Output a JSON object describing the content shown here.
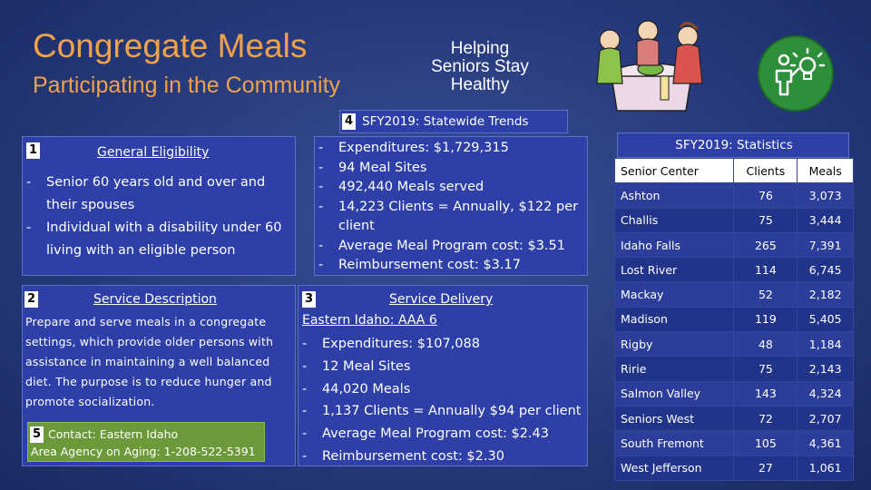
{
  "header": {
    "title": "Congregate Meals",
    "subtitle": "Participating in the Community",
    "tagline": "Helping Seniors Stay Healthy"
  },
  "trends": {
    "number": "4",
    "title": "SFY2019: Statewide Trends",
    "items": [
      "Expenditures: $1,729,315",
      "94 Meal Sites",
      "492,440 Meals served",
      "14,223 Clients = Annually, $122 per client",
      "Average Meal Program cost: $3.51",
      "Reimbursement cost: $3.17"
    ]
  },
  "eligibility": {
    "number": "1",
    "title": "General Eligibility",
    "items": [
      "Senior 60 years old and over and their spouses",
      "Individual with a disability under 60 living with an eligible person"
    ]
  },
  "service_description": {
    "number": "2",
    "title": "Service Description",
    "text": "Prepare and serve meals in a congregate settings, which provide older persons with assistance in maintaining a well balanced diet. The purpose is to reduce hunger and promote socialization."
  },
  "contact": {
    "number": "5",
    "line1": "Contact: Eastern Idaho",
    "line2": "Area Agency on Aging: 1-208-522-5391"
  },
  "service_delivery": {
    "number": "3",
    "title": "Service Delivery",
    "region": "Eastern Idaho: AAA 6",
    "items": [
      "Expenditures: $107,088",
      "12 Meal Sites",
      "44,020 Meals",
      "1,137 Clients = Annually $94 per client",
      "Average Meal Program cost: $2.43",
      "Reimbursement cost: $2.30"
    ]
  },
  "statistics": {
    "title": "SFY2019: Statistics",
    "columns": [
      "Senior Center",
      "Clients",
      "Meals"
    ],
    "rows": [
      [
        "Ashton",
        "76",
        "3,073"
      ],
      [
        "Challis",
        "75",
        "3,444"
      ],
      [
        "Idaho Falls",
        "265",
        "7,391"
      ],
      [
        "Lost River",
        "114",
        "6,745"
      ],
      [
        "Mackay",
        "52",
        "2,182"
      ],
      [
        "Madison",
        "119",
        "5,405"
      ],
      [
        "Rigby",
        "48",
        "1,184"
      ],
      [
        "Ririe",
        "75",
        "2,143"
      ],
      [
        "Salmon Valley",
        "143",
        "4,324"
      ],
      [
        "Seniors West",
        "72",
        "2,707"
      ],
      [
        "South Fremont",
        "105",
        "4,361"
      ],
      [
        "West Jefferson",
        "27",
        "1,061"
      ]
    ]
  },
  "icons": {
    "illustration": "seniors-eating-meal-illustration",
    "idea": "person-lightbulb-icon",
    "accent_green": "#6c9a3a",
    "title_orange": "#f0a24b"
  }
}
